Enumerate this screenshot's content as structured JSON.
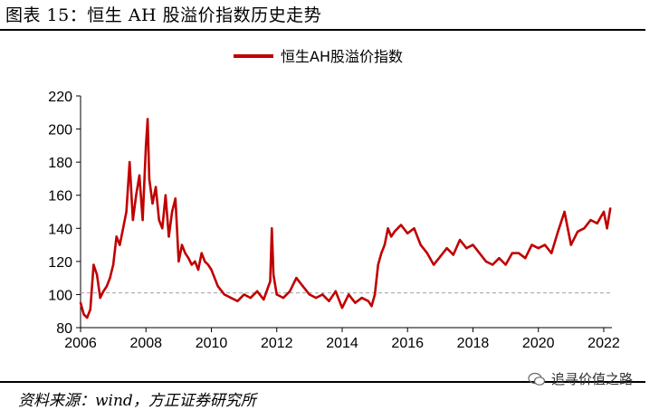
{
  "header": {
    "title": "图表 15：恒生 AH 股溢价指数历史走势"
  },
  "footer": {
    "source": "资料来源：wind，方正证券研究所",
    "watermark": "追寻价值之路"
  },
  "icons": {
    "watermark": "wechat-icon"
  },
  "colors": {
    "series": "#C00000",
    "reference": "#A0A0A0"
  },
  "chart_data": {
    "type": "line",
    "title": "",
    "xlabel": "",
    "ylabel": "",
    "legend": "top-center",
    "xlim": [
      2006.0,
      2022.25
    ],
    "ylim": [
      80,
      220
    ],
    "yticks": [
      "80",
      "100",
      "120",
      "140",
      "160",
      "180",
      "200",
      "220"
    ],
    "xticks": [
      "2006",
      "2008",
      "2010",
      "2012",
      "2014",
      "2016",
      "2018",
      "2020",
      "2022"
    ],
    "reference_line": {
      "y": 101,
      "style": "dashed"
    },
    "series": [
      {
        "name": "恒生AH股溢价指数",
        "x": [
          2006.0,
          2006.1,
          2006.2,
          2006.3,
          2006.4,
          2006.5,
          2006.6,
          2006.7,
          2006.8,
          2006.9,
          2007.0,
          2007.1,
          2007.2,
          2007.3,
          2007.4,
          2007.5,
          2007.6,
          2007.7,
          2007.8,
          2007.9,
          2008.0,
          2008.05,
          2008.1,
          2008.2,
          2008.3,
          2008.4,
          2008.5,
          2008.6,
          2008.7,
          2008.8,
          2008.9,
          2009.0,
          2009.1,
          2009.2,
          2009.3,
          2009.4,
          2009.5,
          2009.6,
          2009.7,
          2009.8,
          2009.9,
          2010.0,
          2010.2,
          2010.4,
          2010.6,
          2010.8,
          2011.0,
          2011.2,
          2011.4,
          2011.6,
          2011.8,
          2011.85,
          2011.9,
          2012.0,
          2012.2,
          2012.4,
          2012.6,
          2012.8,
          2013.0,
          2013.2,
          2013.4,
          2013.6,
          2013.8,
          2014.0,
          2014.2,
          2014.4,
          2014.6,
          2014.8,
          2014.9,
          2015.0,
          2015.1,
          2015.2,
          2015.3,
          2015.4,
          2015.5,
          2015.6,
          2015.8,
          2016.0,
          2016.2,
          2016.4,
          2016.6,
          2016.8,
          2017.0,
          2017.2,
          2017.4,
          2017.6,
          2017.8,
          2018.0,
          2018.2,
          2018.4,
          2018.6,
          2018.8,
          2019.0,
          2019.2,
          2019.4,
          2019.6,
          2019.8,
          2020.0,
          2020.2,
          2020.4,
          2020.6,
          2020.8,
          2020.9,
          2021.0,
          2021.2,
          2021.4,
          2021.6,
          2021.8,
          2022.0,
          2022.1,
          2022.2
        ],
        "values": [
          95,
          88,
          86,
          91,
          118,
          112,
          98,
          102,
          105,
          110,
          118,
          135,
          130,
          140,
          150,
          180,
          145,
          160,
          172,
          145,
          190,
          206,
          170,
          155,
          165,
          145,
          140,
          160,
          135,
          150,
          158,
          120,
          130,
          125,
          122,
          118,
          120,
          115,
          125,
          120,
          118,
          115,
          105,
          100,
          98,
          96,
          100,
          98,
          102,
          97,
          108,
          140,
          112,
          100,
          98,
          102,
          110,
          105,
          100,
          98,
          100,
          96,
          102,
          92,
          100,
          95,
          98,
          96,
          93,
          100,
          118,
          125,
          130,
          140,
          135,
          138,
          142,
          137,
          140,
          130,
          125,
          118,
          123,
          128,
          124,
          133,
          128,
          130,
          125,
          120,
          118,
          122,
          118,
          125,
          125,
          122,
          130,
          128,
          130,
          125,
          138,
          150,
          140,
          130,
          138,
          140,
          145,
          143,
          150,
          140,
          152
        ]
      }
    ]
  }
}
